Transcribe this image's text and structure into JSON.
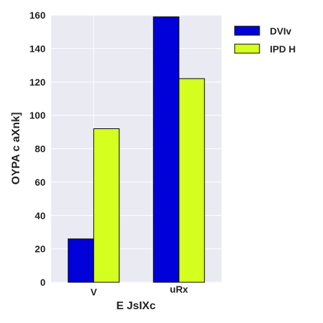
{
  "chart_data": {
    "type": "bar",
    "categories": [
      "V",
      "uRx"
    ],
    "category_label_sizes": [
      "large",
      "small"
    ],
    "series": [
      {
        "name": "DVIv",
        "values": [
          26,
          159
        ],
        "color": "#0000d8"
      },
      {
        "name": "IPD H",
        "values": [
          92,
          122
        ],
        "color": "#d4ff1f"
      }
    ],
    "xlabel": "E JsIXc",
    "ylabel": "OYPA c aXnk]",
    "ylim": [
      0,
      160
    ],
    "yticks": [
      0,
      20,
      40,
      60,
      80,
      100,
      120,
      140,
      160
    ],
    "grid": true,
    "legend_position": "outside-right",
    "background_color": "#eaeaf2"
  }
}
